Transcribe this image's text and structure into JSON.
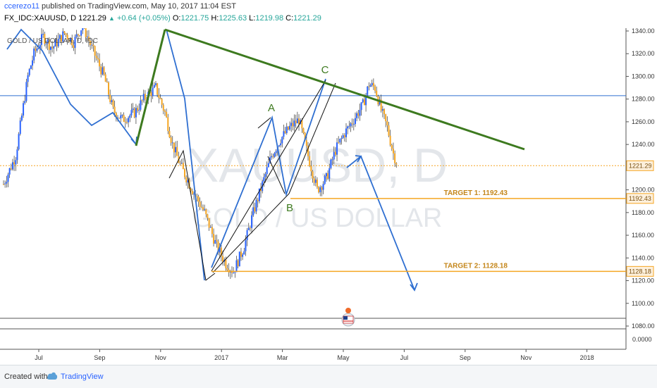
{
  "header": {
    "author": "ccerezo11",
    "published": "published on TradingView.com, May 10, 2017 11:04 EST",
    "symbol": "FX_IDC:XAUUSD, D",
    "last": "1221.29",
    "change": "+0.64 (+0.05%)",
    "o_label": "O:",
    "o_val": "1221.75",
    "h_label": "H:",
    "h_val": "1225.63",
    "l_label": "L:",
    "l_val": "1219.98",
    "c_label": "C:",
    "c_val": "1221.29"
  },
  "footer": {
    "created_with": "Created with",
    "brand": "TradingView"
  },
  "colors": {
    "bull": "#2962ff",
    "bear": "#f5a623",
    "trendline": "#3d7a1f",
    "target": "#f5a623",
    "arrow": "#2f6fd1"
  },
  "chart_data": {
    "type": "candlestick",
    "title": "GOLD / US DOLLAR, D, IDC",
    "watermark_symbol": "XAUUSD, D",
    "watermark_name": "GOLD / US DOLLAR",
    "y_ticks": [
      1340,
      1320,
      1300,
      1280,
      1260,
      1240,
      1200,
      1180,
      1160,
      1140,
      1120,
      1100,
      1080
    ],
    "y_range": [
      1074,
      1342
    ],
    "x_ticks": [
      "Jul",
      "Sep",
      "Nov",
      "2017",
      "Mar",
      "May",
      "Jul",
      "Sep",
      "Nov",
      "2018"
    ],
    "indicator_tick": "0.0000",
    "price_marker": {
      "label": "1221.29",
      "value": 1221.29
    },
    "targets": [
      {
        "label": "TARGET 1: 1192.43",
        "value": 1192.43,
        "tag": "1192.43"
      },
      {
        "label": "TARGET 2: 1128.18",
        "value": 1128.18,
        "tag": "1128.18"
      }
    ],
    "horizontal_line": 1283,
    "wave_labels": [
      "A",
      "B",
      "C"
    ],
    "price_path": [
      [
        0,
        1205
      ],
      [
        0.4,
        1230
      ],
      [
        0.8,
        1300
      ],
      [
        1.0,
        1320
      ],
      [
        1.3,
        1335
      ],
      [
        1.6,
        1325
      ],
      [
        2.0,
        1338
      ],
      [
        2.3,
        1330
      ],
      [
        2.6,
        1345
      ],
      [
        2.9,
        1325
      ],
      [
        3.3,
        1300
      ],
      [
        3.6,
        1270
      ],
      [
        3.9,
        1262
      ],
      [
        4.3,
        1268
      ],
      [
        4.6,
        1280
      ],
      [
        5.0,
        1290
      ],
      [
        5.3,
        1268
      ],
      [
        5.55,
        1240
      ],
      [
        5.8,
        1222
      ],
      [
        6.2,
        1200
      ],
      [
        6.6,
        1180
      ],
      [
        7.0,
        1150
      ],
      [
        7.3,
        1135
      ],
      [
        7.55,
        1128
      ],
      [
        7.9,
        1150
      ],
      [
        8.2,
        1180
      ],
      [
        8.5,
        1205
      ],
      [
        8.8,
        1230
      ],
      [
        9.1,
        1245
      ],
      [
        9.4,
        1255
      ],
      [
        9.7,
        1262
      ],
      [
        10.0,
        1230
      ],
      [
        10.3,
        1200
      ],
      [
        10.6,
        1210
      ],
      [
        10.9,
        1235
      ],
      [
        11.2,
        1250
      ],
      [
        11.5,
        1262
      ],
      [
        11.8,
        1275
      ],
      [
        12.0,
        1293
      ],
      [
        12.2,
        1290
      ],
      [
        12.4,
        1270
      ],
      [
        12.6,
        1255
      ],
      [
        12.8,
        1232
      ],
      [
        12.95,
        1221.29
      ]
    ]
  }
}
